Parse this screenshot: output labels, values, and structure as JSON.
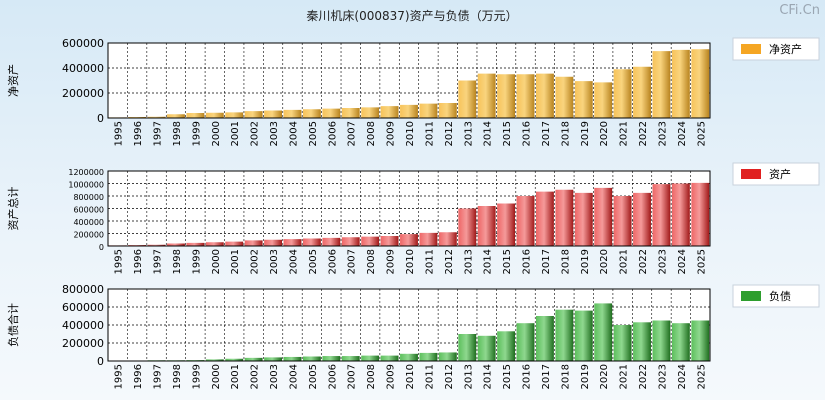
{
  "title": "秦川机床(000837)资产与负债（万元）",
  "watermark": "CFi.Cn",
  "chart_data": [
    {
      "type": "bar",
      "name": "net-assets",
      "ylabel": "净资产",
      "legend": "净资产",
      "color": "#f5a623",
      "ylim": [
        0,
        600000
      ],
      "yticks": [
        0,
        200000,
        400000,
        600000
      ],
      "categories": [
        "1995",
        "1996",
        "1997",
        "1998",
        "1999",
        "2000",
        "2001",
        "2002",
        "2003",
        "2004",
        "2005",
        "2006",
        "2007",
        "2008",
        "2009",
        "2010",
        "2011",
        "2012",
        "2013",
        "2014",
        "2015",
        "2016",
        "2017",
        "2018",
        "2019",
        "2020",
        "2021",
        "2022",
        "2023",
        "2024",
        "2025"
      ],
      "values": [
        5000,
        8000,
        10000,
        30000,
        40000,
        42000,
        45000,
        55000,
        60000,
        65000,
        70000,
        75000,
        80000,
        85000,
        95000,
        105000,
        115000,
        120000,
        300000,
        355000,
        350000,
        350000,
        355000,
        330000,
        295000,
        285000,
        390000,
        410000,
        535000,
        545000,
        550000
      ]
    },
    {
      "type": "bar",
      "name": "total-assets",
      "ylabel": "资产总计",
      "legend": "资产",
      "color": "#e02020",
      "ylim": [
        0,
        1200000
      ],
      "yticks": [
        0,
        200000,
        400000,
        600000,
        800000,
        1000000,
        1200000
      ],
      "categories": [
        "1995",
        "1996",
        "1997",
        "1998",
        "1999",
        "2000",
        "2001",
        "2002",
        "2003",
        "2004",
        "2005",
        "2006",
        "2007",
        "2008",
        "2009",
        "2010",
        "2011",
        "2012",
        "2013",
        "2014",
        "2015",
        "2016",
        "2017",
        "2018",
        "2019",
        "2020",
        "2021",
        "2022",
        "2023",
        "2024",
        "2025"
      ],
      "values": [
        10000,
        15000,
        20000,
        40000,
        50000,
        60000,
        70000,
        90000,
        100000,
        110000,
        120000,
        130000,
        140000,
        150000,
        160000,
        190000,
        210000,
        220000,
        600000,
        640000,
        680000,
        800000,
        870000,
        900000,
        850000,
        930000,
        800000,
        850000,
        990000,
        1000000,
        1010000
      ]
    },
    {
      "type": "bar",
      "name": "total-liabilities",
      "ylabel": "负债合计",
      "legend": "负债",
      "color": "#2e9e2e",
      "ylim": [
        0,
        800000
      ],
      "yticks": [
        0,
        200000,
        400000,
        600000,
        800000
      ],
      "categories": [
        "1995",
        "1996",
        "1997",
        "1998",
        "1999",
        "2000",
        "2001",
        "2002",
        "2003",
        "2004",
        "2005",
        "2006",
        "2007",
        "2008",
        "2009",
        "2010",
        "2011",
        "2012",
        "2013",
        "2014",
        "2015",
        "2016",
        "2017",
        "2018",
        "2019",
        "2020",
        "2021",
        "2022",
        "2023",
        "2024",
        "2025"
      ],
      "values": [
        5000,
        5000,
        8000,
        8000,
        10000,
        18000,
        25000,
        35000,
        40000,
        45000,
        50000,
        55000,
        55000,
        60000,
        60000,
        80000,
        90000,
        95000,
        300000,
        280000,
        330000,
        420000,
        500000,
        570000,
        560000,
        640000,
        400000,
        430000,
        450000,
        420000,
        450000
      ]
    }
  ]
}
